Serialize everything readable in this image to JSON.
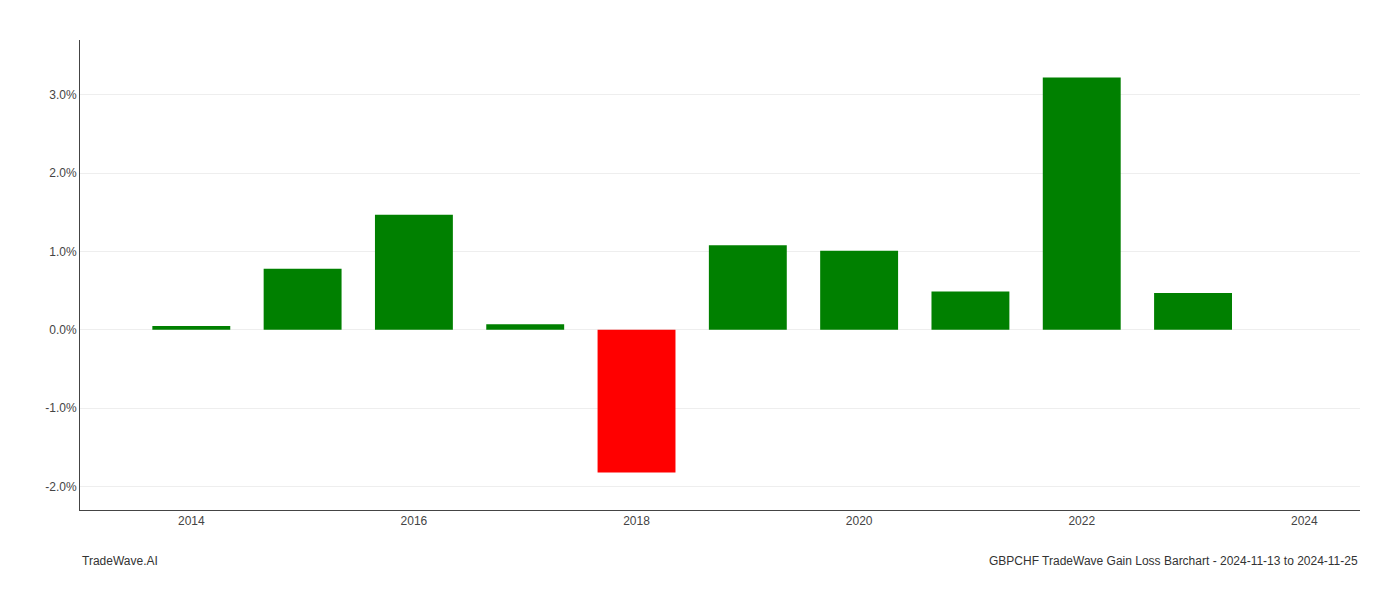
{
  "chart_data": {
    "type": "bar",
    "x": [
      2014,
      2015,
      2016,
      2017,
      2018,
      2019,
      2020,
      2021,
      2022,
      2023
    ],
    "values": [
      0.05,
      0.78,
      1.47,
      0.07,
      -1.82,
      1.08,
      1.01,
      0.49,
      3.22,
      0.47
    ],
    "colors": [
      "#008000",
      "#008000",
      "#008000",
      "#008000",
      "#ff0000",
      "#008000",
      "#008000",
      "#008000",
      "#008000",
      "#008000"
    ],
    "xlim": [
      2013.0,
      2024.5
    ],
    "xticks": [
      2014,
      2016,
      2018,
      2020,
      2022,
      2024
    ],
    "ylim": [
      -2.3,
      3.7
    ],
    "yticks": [
      {
        "value": -2.0,
        "label": "-2.0%"
      },
      {
        "value": -1.0,
        "label": "-1.0%"
      },
      {
        "value": 0.0,
        "label": "0.0%"
      },
      {
        "value": 1.0,
        "label": "1.0%"
      },
      {
        "value": 2.0,
        "label": "2.0%"
      },
      {
        "value": 3.0,
        "label": "3.0%"
      }
    ],
    "grid": true,
    "annotations": [
      "TradeWave.AI",
      "GBPCHF TradeWave Gain Loss Barchart - 2024-11-13 to 2024-11-25"
    ]
  }
}
